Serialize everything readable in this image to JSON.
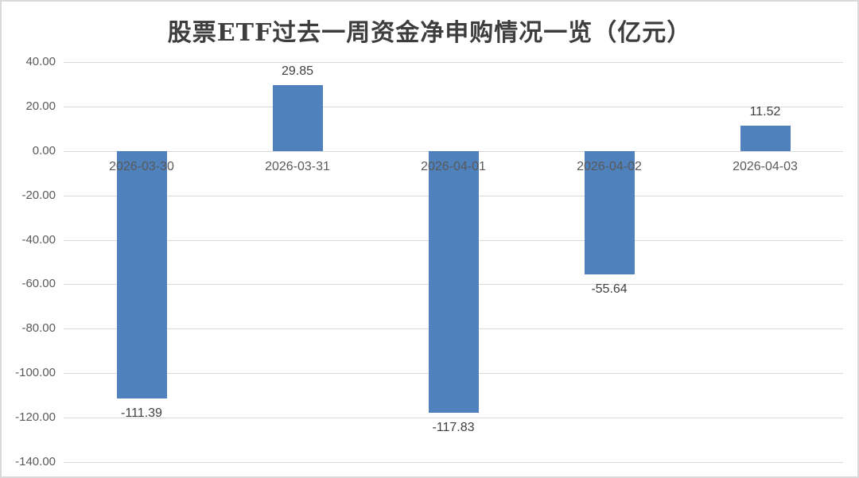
{
  "title": "股票ETF过去一周资金净申购情况一览（亿元）",
  "colors": {
    "bar": "#4F81BD",
    "gridline": "#D9D9D9",
    "axis_label": "#595959",
    "value_label": "#3F3F3F",
    "title": "#3D3D3D",
    "border": "#D9D9D9",
    "background": "#FFFFFF"
  },
  "chart_data": {
    "type": "bar",
    "title": "股票ETF过去一周资金净申购情况一览（亿元）",
    "categories": [
      "2026-03-30",
      "2026-03-31",
      "2026-04-01",
      "2026-04-02",
      "2026-04-03"
    ],
    "values": [
      -111.39,
      29.85,
      -117.83,
      -55.64,
      11.52
    ],
    "value_labels": [
      "-111.39",
      "29.85",
      "-117.83",
      "-55.64",
      "11.52"
    ],
    "xlabel": "",
    "ylabel": "",
    "ylim": [
      -140,
      40
    ],
    "yticks": [
      40,
      20,
      0,
      -20,
      -40,
      -60,
      -80,
      -100,
      -120,
      -140
    ],
    "ytick_labels": [
      "40.00",
      "20.00",
      "0.00",
      "-20.00",
      "-40.00",
      "-60.00",
      "-80.00",
      "-100.00",
      "-120.00",
      "-140.00"
    ],
    "grid": "horizontal",
    "legend": "none",
    "bar_color": "#4F81BD",
    "category_labels_position": "below-zero-line"
  }
}
